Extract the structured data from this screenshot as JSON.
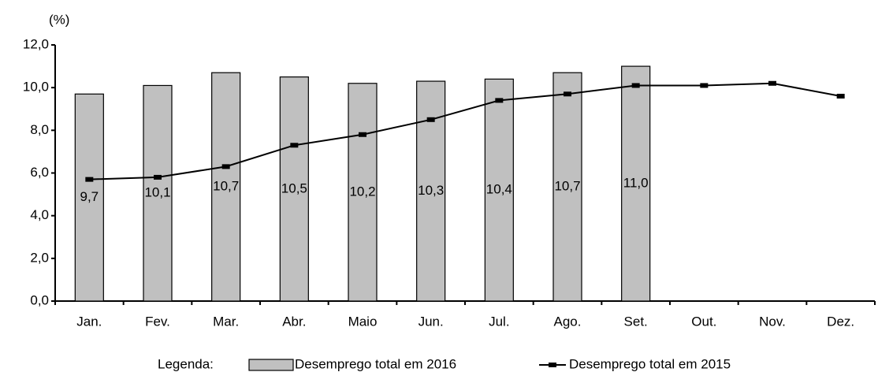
{
  "chart_data": {
    "type": "bar-line",
    "unit_label": "(%)",
    "categories": [
      "Jan.",
      "Fev.",
      "Mar.",
      "Abr.",
      "Maio",
      "Jun.",
      "Jul.",
      "Ago.",
      "Set.",
      "Out.",
      "Nov.",
      "Dez."
    ],
    "series": [
      {
        "name": "Desemprego total em 2016",
        "type": "bar",
        "color": "#c0c0c0",
        "values": [
          9.7,
          10.1,
          10.7,
          10.5,
          10.2,
          10.3,
          10.4,
          10.7,
          11.0,
          null,
          null,
          null
        ],
        "value_labels": [
          "9,7",
          "10,1",
          "10,7",
          "10,5",
          "10,2",
          "10,3",
          "10,4",
          "10,7",
          "11,0",
          null,
          null,
          null
        ]
      },
      {
        "name": "Desemprego total em 2015",
        "type": "line",
        "color": "#000000",
        "values": [
          5.7,
          5.8,
          6.3,
          7.3,
          7.8,
          8.5,
          9.4,
          9.7,
          10.1,
          10.1,
          10.2,
          9.6
        ]
      }
    ],
    "ylim": [
      0,
      12
    ],
    "yticks": [
      {
        "value": 0,
        "label": "0,0"
      },
      {
        "value": 2,
        "label": "2,0"
      },
      {
        "value": 4,
        "label": "4,0"
      },
      {
        "value": 6,
        "label": "6,0"
      },
      {
        "value": 8,
        "label": "8,0"
      },
      {
        "value": 10,
        "label": "10,0"
      },
      {
        "value": 12,
        "label": "12,0"
      }
    ],
    "legend_title": "Legenda:",
    "grid": false
  }
}
